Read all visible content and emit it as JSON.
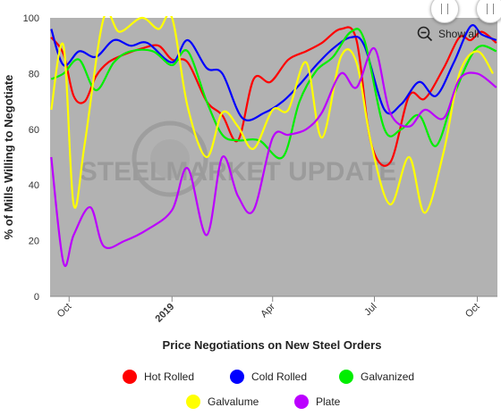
{
  "chart_data": {
    "type": "line",
    "title": "",
    "xlabel": "Price Negotiations on New Steel Orders",
    "ylabel": "% of Mills Willing to Negotiate",
    "ylim": [
      0,
      100
    ],
    "yticks": [
      0,
      20,
      40,
      60,
      80,
      100
    ],
    "xlim": [
      "2018-09-14",
      "2019-10-19"
    ],
    "xticks": [
      {
        "label": "Oct",
        "date": "2018-10-01",
        "bold": false
      },
      {
        "label": "2019",
        "date": "2019-01-01",
        "bold": true
      },
      {
        "label": "Apr",
        "date": "2019-04-01",
        "bold": false
      },
      {
        "label": "Jul",
        "date": "2019-07-01",
        "bold": false
      },
      {
        "label": "Oct",
        "date": "2019-10-01",
        "bold": false
      }
    ],
    "grid": false,
    "legend_position": "bottom",
    "watermark": "STEELMARKET UPDATE",
    "series": [
      {
        "name": "Hot Rolled",
        "color": "#ff0000",
        "points": [
          [
            "2018-09-15",
            93
          ],
          [
            "2018-09-26",
            87
          ],
          [
            "2018-10-05",
            72
          ],
          [
            "2018-10-15",
            70
          ],
          [
            "2018-10-25",
            79
          ],
          [
            "2018-11-05",
            84
          ],
          [
            "2018-11-20",
            87
          ],
          [
            "2018-12-05",
            89
          ],
          [
            "2018-12-20",
            90
          ],
          [
            "2019-01-01",
            85
          ],
          [
            "2019-01-15",
            84
          ],
          [
            "2019-02-01",
            70
          ],
          [
            "2019-02-15",
            65
          ],
          [
            "2019-03-01",
            56
          ],
          [
            "2019-03-15",
            78
          ],
          [
            "2019-03-30",
            77
          ],
          [
            "2019-04-15",
            85
          ],
          [
            "2019-05-01",
            88
          ],
          [
            "2019-05-15",
            91
          ],
          [
            "2019-06-01",
            96
          ],
          [
            "2019-06-15",
            92
          ],
          [
            "2019-06-28",
            55
          ],
          [
            "2019-07-15",
            48
          ],
          [
            "2019-08-01",
            72
          ],
          [
            "2019-08-15",
            71
          ],
          [
            "2019-09-01",
            82
          ],
          [
            "2019-09-15",
            93
          ],
          [
            "2019-09-25",
            92
          ],
          [
            "2019-10-05",
            95
          ],
          [
            "2019-10-18",
            91
          ]
        ]
      },
      {
        "name": "Cold Rolled",
        "color": "#0000ff",
        "points": [
          [
            "2018-09-15",
            96
          ],
          [
            "2018-09-26",
            83
          ],
          [
            "2018-10-10",
            88
          ],
          [
            "2018-10-25",
            86
          ],
          [
            "2018-11-10",
            92
          ],
          [
            "2018-11-25",
            90
          ],
          [
            "2018-12-10",
            91
          ],
          [
            "2019-01-01",
            84
          ],
          [
            "2019-01-15",
            92
          ],
          [
            "2019-02-01",
            82
          ],
          [
            "2019-02-15",
            80
          ],
          [
            "2019-03-05",
            64
          ],
          [
            "2019-03-25",
            66
          ],
          [
            "2019-04-10",
            70
          ],
          [
            "2019-04-25",
            76
          ],
          [
            "2019-05-10",
            83
          ],
          [
            "2019-05-25",
            89
          ],
          [
            "2019-06-10",
            93
          ],
          [
            "2019-06-22",
            90
          ],
          [
            "2019-07-10",
            67
          ],
          [
            "2019-07-25",
            69
          ],
          [
            "2019-08-10",
            77
          ],
          [
            "2019-08-25",
            72
          ],
          [
            "2019-09-10",
            84
          ],
          [
            "2019-09-25",
            97
          ],
          [
            "2019-10-05",
            94
          ],
          [
            "2019-10-18",
            92
          ]
        ]
      },
      {
        "name": "Galvanized",
        "color": "#00ee00",
        "points": [
          [
            "2018-09-15",
            78
          ],
          [
            "2018-09-26",
            80
          ],
          [
            "2018-10-10",
            85
          ],
          [
            "2018-10-25",
            74
          ],
          [
            "2018-11-10",
            84
          ],
          [
            "2018-11-25",
            88
          ],
          [
            "2018-12-15",
            88
          ],
          [
            "2019-01-01",
            83
          ],
          [
            "2019-01-15",
            88
          ],
          [
            "2019-02-01",
            70
          ],
          [
            "2019-02-15",
            58
          ],
          [
            "2019-03-01",
            56
          ],
          [
            "2019-03-20",
            56
          ],
          [
            "2019-04-10",
            50
          ],
          [
            "2019-04-25",
            70
          ],
          [
            "2019-05-10",
            81
          ],
          [
            "2019-05-25",
            86
          ],
          [
            "2019-06-10",
            95
          ],
          [
            "2019-06-22",
            92
          ],
          [
            "2019-07-10",
            60
          ],
          [
            "2019-07-25",
            60
          ],
          [
            "2019-08-10",
            65
          ],
          [
            "2019-08-25",
            54
          ],
          [
            "2019-09-10",
            72
          ],
          [
            "2019-09-25",
            86
          ],
          [
            "2019-10-05",
            90
          ],
          [
            "2019-10-18",
            88
          ]
        ]
      },
      {
        "name": "Galvalume",
        "color": "#ffff00",
        "points": [
          [
            "2018-09-15",
            67
          ],
          [
            "2018-09-26",
            90
          ],
          [
            "2018-10-05",
            33
          ],
          [
            "2018-10-15",
            55
          ],
          [
            "2018-11-01",
            100
          ],
          [
            "2018-11-15",
            95
          ],
          [
            "2018-12-05",
            100
          ],
          [
            "2018-12-20",
            96
          ],
          [
            "2019-01-01",
            100
          ],
          [
            "2019-01-15",
            68
          ],
          [
            "2019-02-01",
            50
          ],
          [
            "2019-02-15",
            66
          ],
          [
            "2019-03-01",
            61
          ],
          [
            "2019-03-15",
            53
          ],
          [
            "2019-04-01",
            67
          ],
          [
            "2019-04-15",
            67
          ],
          [
            "2019-05-01",
            84
          ],
          [
            "2019-05-15",
            57
          ],
          [
            "2019-06-01",
            86
          ],
          [
            "2019-06-15",
            84
          ],
          [
            "2019-06-28",
            55
          ],
          [
            "2019-07-15",
            33
          ],
          [
            "2019-08-01",
            50
          ],
          [
            "2019-08-15",
            30
          ],
          [
            "2019-09-01",
            52
          ],
          [
            "2019-09-15",
            80
          ],
          [
            "2019-10-01",
            88
          ],
          [
            "2019-10-15",
            80
          ]
        ]
      },
      {
        "name": "Plate",
        "color": "#bb00ff",
        "points": [
          [
            "2018-09-15",
            50
          ],
          [
            "2018-09-26",
            12
          ],
          [
            "2018-10-05",
            22
          ],
          [
            "2018-10-20",
            32
          ],
          [
            "2018-11-01",
            18
          ],
          [
            "2018-11-20",
            20
          ],
          [
            "2018-12-10",
            24
          ],
          [
            "2019-01-01",
            31
          ],
          [
            "2019-01-15",
            46
          ],
          [
            "2019-02-01",
            22
          ],
          [
            "2019-02-15",
            50
          ],
          [
            "2019-03-01",
            36
          ],
          [
            "2019-03-15",
            31
          ],
          [
            "2019-04-01",
            57
          ],
          [
            "2019-04-15",
            58
          ],
          [
            "2019-05-01",
            60
          ],
          [
            "2019-05-15",
            66
          ],
          [
            "2019-06-01",
            80
          ],
          [
            "2019-06-15",
            75
          ],
          [
            "2019-07-01",
            89
          ],
          [
            "2019-07-15",
            66
          ],
          [
            "2019-08-01",
            61
          ],
          [
            "2019-08-15",
            67
          ],
          [
            "2019-09-01",
            64
          ],
          [
            "2019-09-15",
            78
          ],
          [
            "2019-10-01",
            80
          ],
          [
            "2019-10-18",
            75
          ]
        ]
      }
    ]
  },
  "controls": {
    "show_all_label": "Show all"
  }
}
